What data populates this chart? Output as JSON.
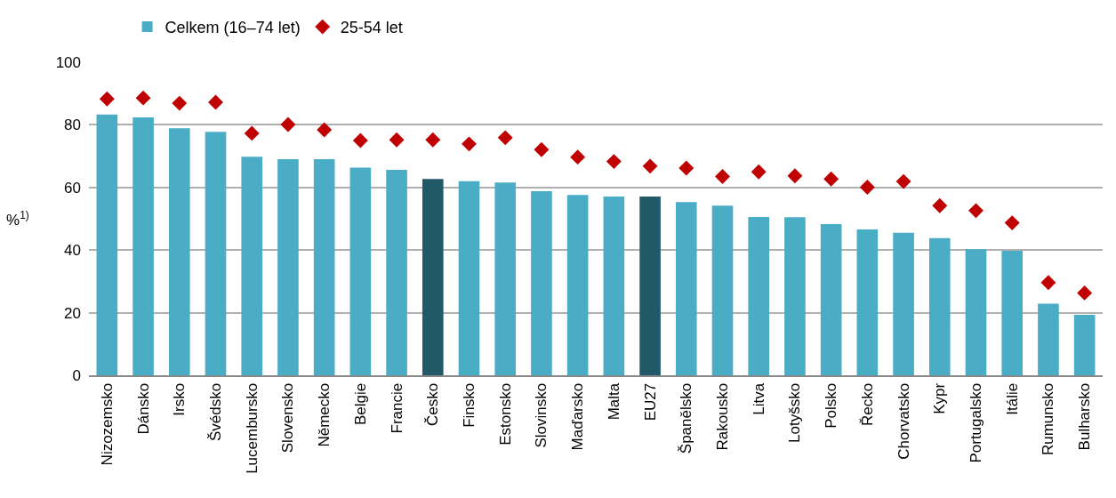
{
  "chart_data": {
    "type": "bar",
    "ylabel": "%$^{1)}$",
    "categories": [
      "Nizozemsko",
      "Dánsko",
      "Irsko",
      "Švédsko",
      "Lucembursko",
      "Slovensko",
      "Německo",
      "Belgie",
      "Francie",
      "Česko",
      "Finsko",
      "Estonsko",
      "Slovinsko",
      "Maďarsko",
      "Malta",
      "EU27",
      "Španělsko",
      "Rakousko",
      "Litva",
      "Lotyšsko",
      "Polsko",
      "Řecko",
      "Chorvatsko",
      "Kypr",
      "Portugalsko",
      "Itálie",
      "Rumunsko",
      "Bulharsko"
    ],
    "series": [
      {
        "name": "Celkem (16–74 let)",
        "color": "#4bacc6",
        "colors": [
          "#4bacc6",
          "#4bacc6",
          "#4bacc6",
          "#4bacc6",
          "#4bacc6",
          "#4bacc6",
          "#4bacc6",
          "#4bacc6",
          "#4bacc6",
          "#215968",
          "#4bacc6",
          "#4bacc6",
          "#4bacc6",
          "#4bacc6",
          "#4bacc6",
          "#215968",
          "#4bacc6",
          "#4bacc6",
          "#4bacc6",
          "#4bacc6",
          "#4bacc6",
          "#4bacc6",
          "#4bacc6",
          "#4bacc6",
          "#4bacc6",
          "#4bacc6",
          "#4bacc6",
          "#4bacc6"
        ],
        "values": [
          83.3,
          82.4,
          78.9,
          77.8,
          69.8,
          69.0,
          69.0,
          66.3,
          65.6,
          62.7,
          62.0,
          61.6,
          58.8,
          57.6,
          57.1,
          57.1,
          55.3,
          54.2,
          50.6,
          50.5,
          48.3,
          46.6,
          45.5,
          43.8,
          40.3,
          39.8,
          22.9,
          19.3
        ]
      },
      {
        "name": "25-54 let",
        "type": "scatter",
        "marker": "diamond",
        "color": "#c00000",
        "values": [
          88.3,
          88.6,
          86.9,
          87.2,
          77.3,
          80.1,
          78.4,
          75.0,
          75.2,
          75.2,
          73.9,
          75.9,
          72.1,
          69.7,
          68.3,
          66.8,
          66.2,
          63.5,
          65.0,
          63.7,
          62.7,
          60.1,
          61.9,
          54.2,
          52.6,
          48.7,
          29.6,
          26.3
        ]
      }
    ],
    "ylim": [
      0,
      100
    ],
    "yticks": [
      0,
      20,
      40,
      60,
      80,
      100
    ],
    "grid": "y",
    "legend": "top left"
  }
}
